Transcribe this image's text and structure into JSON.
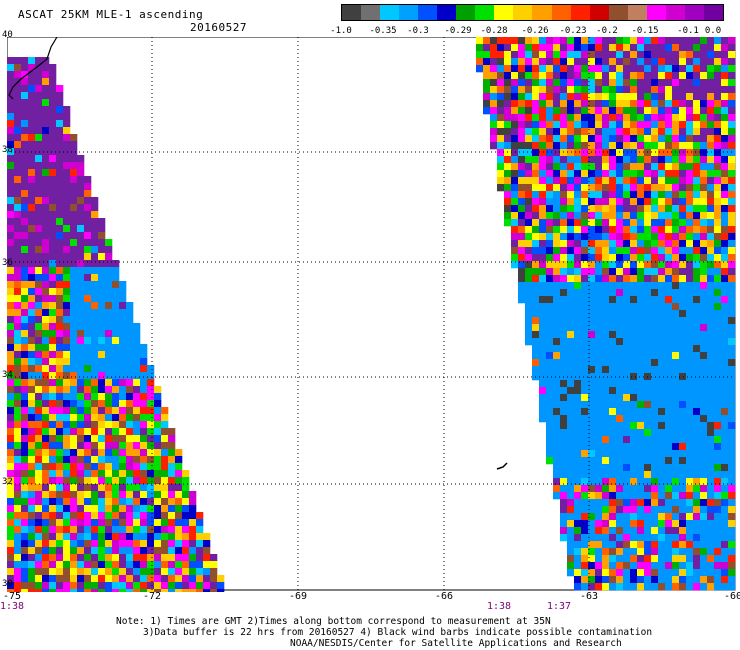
{
  "header": {
    "title": "ASCAT 25KM MLE-1 ascending",
    "date": "20160527"
  },
  "colorbar": {
    "colors": [
      "#404040",
      "#707070",
      "#00c8ff",
      "#00a0ff",
      "#0050ff",
      "#0000c8",
      "#00a000",
      "#00e000",
      "#ffff00",
      "#ffd000",
      "#ffa000",
      "#ff6000",
      "#ff2000",
      "#d00000",
      "#905030",
      "#c08060",
      "#ff00ff",
      "#d000d0",
      "#a000c0",
      "#7000a0"
    ],
    "labels": [
      "-1.0",
      "-0.35",
      "-0.3",
      "-0.29",
      "-0.28",
      "-0.26",
      "-0.23",
      "-0.2",
      "-0.15",
      "-0.1",
      "0.0"
    ]
  },
  "map": {
    "lat_labels": [
      "40",
      "38",
      "36",
      "34",
      "32",
      "30"
    ],
    "lon_labels": [
      "-75",
      "-72",
      "-69",
      "-66",
      "-63",
      "-60"
    ],
    "time_labels": [
      "1:38",
      "1:38",
      "1:37"
    ],
    "palette": {
      "dark": "#404040",
      "blue_light": "#0096ff",
      "cyan": "#00c8ff",
      "blue": "#0050ff",
      "navy": "#0000c8",
      "green": "#00b000",
      "lime": "#00e000",
      "yellow": "#ffff00",
      "gold": "#ffd000",
      "orange": "#ffa000",
      "red_orange": "#ff6000",
      "red": "#ff2000",
      "brown": "#905030",
      "magenta": "#ff00ff",
      "purple": "#d000d0",
      "violet": "#7020a0"
    }
  },
  "footer": {
    "line1": "Note: 1) Times are GMT 2)Times along bottom correspond to measurement at 35N",
    "line2": "3)Data buffer is 22 hrs from 20160527 4) Black wind barbs indicate possible contamination",
    "line3": "NOAA/NESDIS/Center for Satellite Applications and Research"
  }
}
